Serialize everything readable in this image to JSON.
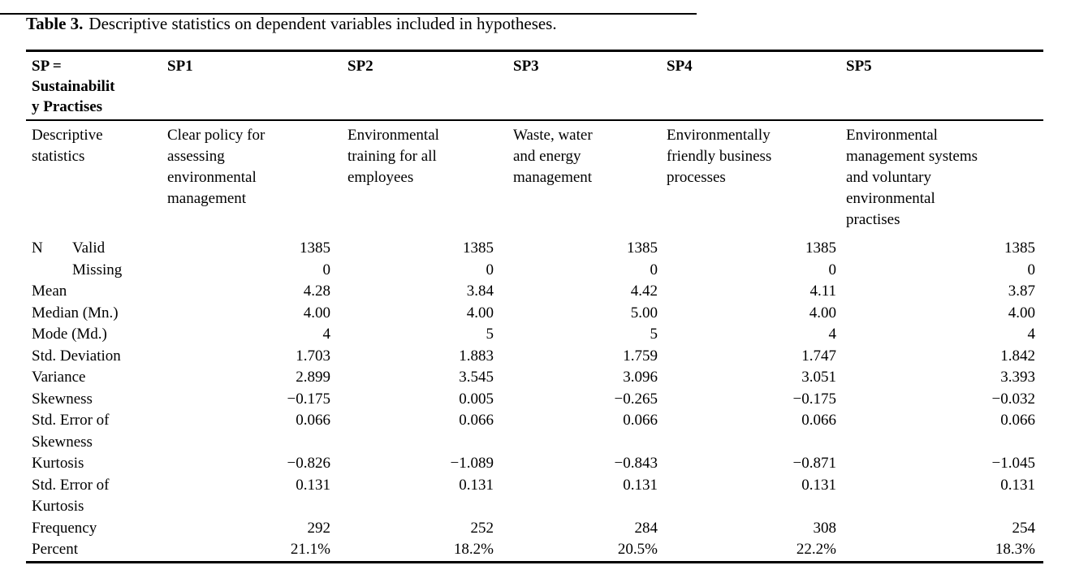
{
  "colors": {
    "text": "#000000",
    "rules": "#000000",
    "background": "#ffffff"
  },
  "title": {
    "label": "Table 3.",
    "text": "Descriptive statistics on dependent variables included in hypotheses."
  },
  "table": {
    "corner_header": "SP =\nSustainabilit\ny Practises",
    "col_headers": [
      "SP1",
      "SP2",
      "SP3",
      "SP4",
      "SP5"
    ],
    "descriptive_label": "Descriptive\nstatistics",
    "col_descriptions": [
      "Clear policy for\nassessing\nenvironmental\nmanagement",
      "Environmental\ntraining for all\nemployees",
      "Waste, water\nand energy\nmanagement",
      "Environmentally\nfriendly business\nprocesses",
      "Environmental\nmanagement systems\nand voluntary\nenvironmental\npractises"
    ],
    "rows": [
      {
        "prefix": "N",
        "indent": true,
        "label": "Valid",
        "values": [
          "1385",
          "1385",
          "1385",
          "1385",
          "1385"
        ]
      },
      {
        "prefix": "",
        "indent": true,
        "label": "Missing",
        "values": [
          "0",
          "0",
          "0",
          "0",
          "0"
        ]
      },
      {
        "label": "Mean",
        "values": [
          "4.28",
          "3.84",
          "4.42",
          "4.11",
          "3.87"
        ]
      },
      {
        "label": "Median (Mn.)",
        "values": [
          "4.00",
          "4.00",
          "5.00",
          "4.00",
          "4.00"
        ]
      },
      {
        "label": "Mode (Md.)",
        "values": [
          "4",
          "5",
          "5",
          "4",
          "4"
        ]
      },
      {
        "label": "Std. Deviation",
        "values": [
          "1.703",
          "1.883",
          "1.759",
          "1.747",
          "1.842"
        ]
      },
      {
        "label": "Variance",
        "values": [
          "2.899",
          "3.545",
          "3.096",
          "3.051",
          "3.393"
        ]
      },
      {
        "label": "Skewness",
        "values": [
          "−0.175",
          "0.005",
          "−0.265",
          "−0.175",
          "−0.032"
        ]
      },
      {
        "label": "Std. Error of\nSkewness",
        "values": [
          "0.066",
          "0.066",
          "0.066",
          "0.066",
          "0.066"
        ]
      },
      {
        "label": "Kurtosis",
        "values": [
          "−0.826",
          "−1.089",
          "−0.843",
          "−0.871",
          "−1.045"
        ]
      },
      {
        "label": "Std. Error of\nKurtosis",
        "values": [
          "0.131",
          "0.131",
          "0.131",
          "0.131",
          "0.131"
        ]
      },
      {
        "label": "Frequency",
        "values": [
          "292",
          "252",
          "284",
          "308",
          "254"
        ]
      },
      {
        "label": "Percent",
        "values": [
          "21.1%",
          "18.2%",
          "20.5%",
          "22.2%",
          "18.3%"
        ]
      }
    ]
  }
}
